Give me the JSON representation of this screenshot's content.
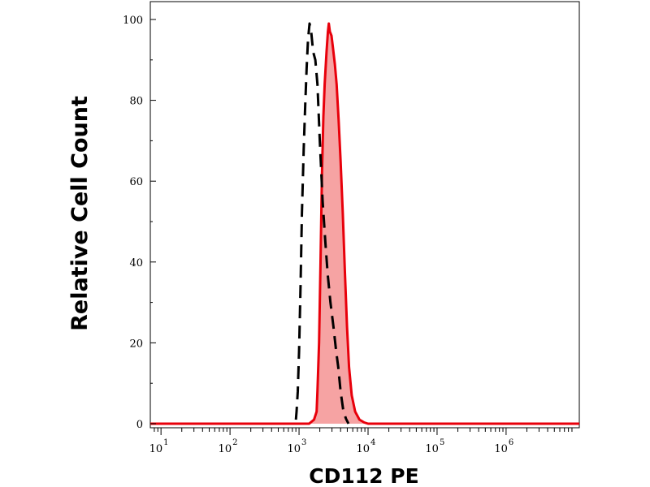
{
  "chart_data": {
    "type": "area",
    "xlabel": "CD112 PE",
    "ylabel": "Relative Cell Count",
    "x_scale": "log",
    "xlim": [
      7,
      11500000
    ],
    "ylim": [
      0,
      100
    ],
    "x_ticks": [
      {
        "base": "10",
        "exp": "1",
        "value": 10
      },
      {
        "base": "10",
        "exp": "2",
        "value": 100
      },
      {
        "base": "10",
        "exp": "3",
        "value": 1000
      },
      {
        "base": "10",
        "exp": "4",
        "value": 10000
      },
      {
        "base": "10",
        "exp": "5",
        "value": 100000
      },
      {
        "base": "10",
        "exp": "6",
        "value": 1000000
      }
    ],
    "y_ticks": [
      "0",
      "20",
      "40",
      "60",
      "80",
      "100"
    ],
    "grid": false,
    "series": [
      {
        "style": "filled",
        "color": "#e8000b",
        "fill": "#f6a3a3",
        "points": [
          [
            7,
            0
          ],
          [
            1400,
            0
          ],
          [
            1650,
            1
          ],
          [
            1800,
            3
          ],
          [
            1850,
            8
          ],
          [
            1950,
            20
          ],
          [
            2050,
            40
          ],
          [
            2150,
            62
          ],
          [
            2250,
            76
          ],
          [
            2350,
            84
          ],
          [
            2500,
            92
          ],
          [
            2620,
            97
          ],
          [
            2700,
            99
          ],
          [
            2800,
            97
          ],
          [
            2950,
            96
          ],
          [
            3100,
            93
          ],
          [
            3300,
            89
          ],
          [
            3500,
            84
          ],
          [
            3750,
            75
          ],
          [
            4000,
            65
          ],
          [
            4300,
            52
          ],
          [
            4600,
            38
          ],
          [
            4950,
            24
          ],
          [
            5300,
            14
          ],
          [
            5800,
            7
          ],
          [
            6500,
            3
          ],
          [
            7500,
            1
          ],
          [
            8800,
            0.3
          ],
          [
            10000,
            0
          ],
          [
            11500000,
            0
          ]
        ]
      },
      {
        "style": "dashed",
        "color": "#000000",
        "points": [
          [
            900,
            1
          ],
          [
            920,
            3
          ],
          [
            960,
            8
          ],
          [
            1000,
            18
          ],
          [
            1050,
            34
          ],
          [
            1100,
            52
          ],
          [
            1170,
            68
          ],
          [
            1230,
            79
          ],
          [
            1290,
            88
          ],
          [
            1350,
            95
          ],
          [
            1420,
            99
          ],
          [
            1500,
            97
          ],
          [
            1600,
            92
          ],
          [
            1720,
            90
          ],
          [
            1850,
            84
          ],
          [
            2000,
            70
          ],
          [
            2200,
            55
          ],
          [
            2400,
            45
          ],
          [
            2600,
            37
          ],
          [
            2850,
            30
          ],
          [
            3150,
            24
          ],
          [
            3450,
            18
          ],
          [
            3700,
            14
          ],
          [
            4000,
            8
          ],
          [
            4400,
            3
          ],
          [
            4800,
            1.2
          ],
          [
            5200,
            0
          ]
        ]
      }
    ]
  }
}
